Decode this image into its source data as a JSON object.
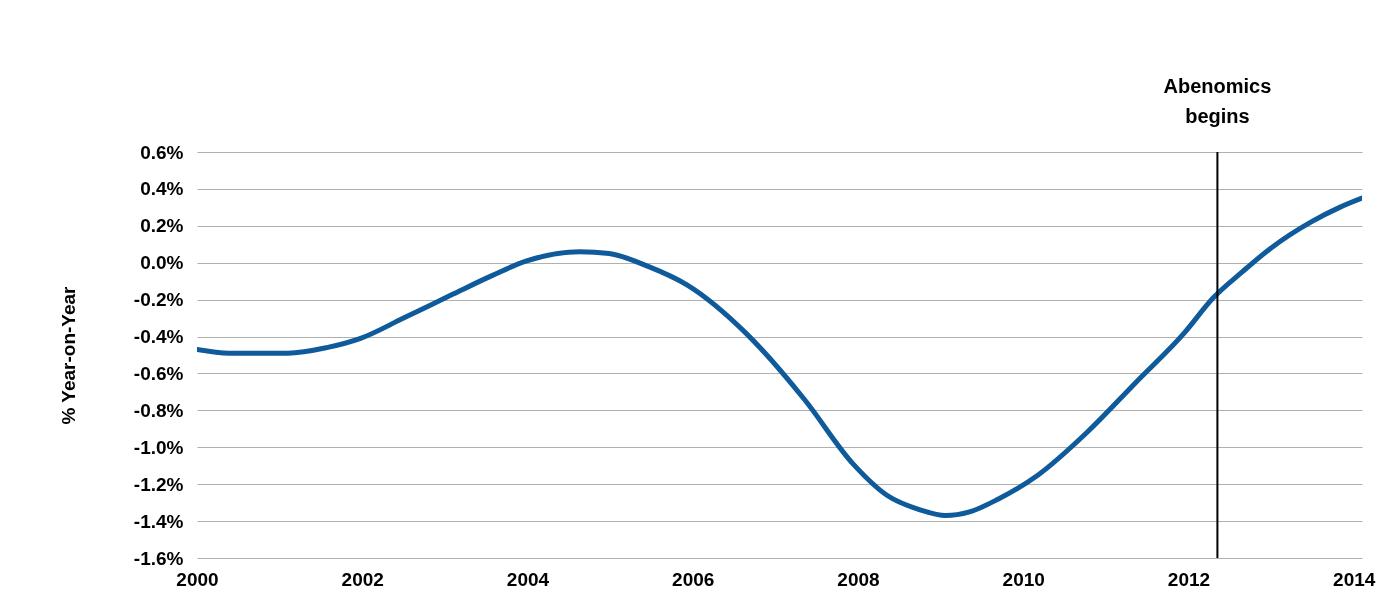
{
  "chart_data": {
    "type": "line",
    "ylabel": "% Year-on-Year",
    "x": [
      2000,
      2000.39,
      2001.1,
      2001.57,
      2001.98,
      2002.5,
      2003.1,
      2003.57,
      2003.99,
      2004.63,
      2004.99,
      2005.46,
      2005.93,
      2006.64,
      2007.35,
      2007.94,
      2008.35,
      2008.76,
      2009.06,
      2009.35,
      2009.7,
      2010.18,
      2010.77,
      2011.36,
      2011.95,
      2012.3,
      2012.65,
      2013.0,
      2013.48,
      2013.83,
      2014.1
    ],
    "series": [
      {
        "color": "#0e5a9a",
        "values": [
          -0.47,
          -0.49,
          -0.49,
          -0.46,
          -0.41,
          -0.3,
          -0.17,
          -0.07,
          0.01,
          0.06,
          0.05,
          -0.02,
          -0.12,
          -0.38,
          -0.74,
          -1.09,
          -1.26,
          -1.34,
          -1.37,
          -1.35,
          -1.28,
          -1.15,
          -0.92,
          -0.65,
          -0.38,
          -0.19,
          -0.05,
          0.08,
          0.22,
          0.3,
          0.35
        ]
      }
    ],
    "xlim": [
      2000,
      2014.1
    ],
    "xticks": [
      2000,
      2002,
      2004,
      2006,
      2008,
      2010,
      2012,
      2014
    ],
    "ylim": [
      -1.6,
      0.6
    ],
    "yticks": [
      {
        "value": -1.6,
        "label": "-1.6%"
      },
      {
        "value": -1.4,
        "label": "-1.4%"
      },
      {
        "value": -1.2,
        "label": "-1.2%"
      },
      {
        "value": -1.0,
        "label": "-1.0%"
      },
      {
        "value": -0.8,
        "label": "-0.8%"
      },
      {
        "value": -0.6,
        "label": "-0.6%"
      },
      {
        "value": -0.4,
        "label": "-0.4%"
      },
      {
        "value": -0.2,
        "label": "-0.2%"
      },
      {
        "value": 0,
        "label": "0.0%"
      },
      {
        "value": 0.2,
        "label": "0.2%"
      },
      {
        "value": 0.4,
        "label": "0.4%"
      },
      {
        "value": 0.6,
        "label": "0.6%"
      }
    ],
    "grid": "y",
    "marker": "none",
    "line_style": "solid",
    "ref_lines": [
      {
        "axis": "x",
        "value": 2012.35,
        "label": "Abenomics begins",
        "color": "#000000"
      }
    ]
  }
}
